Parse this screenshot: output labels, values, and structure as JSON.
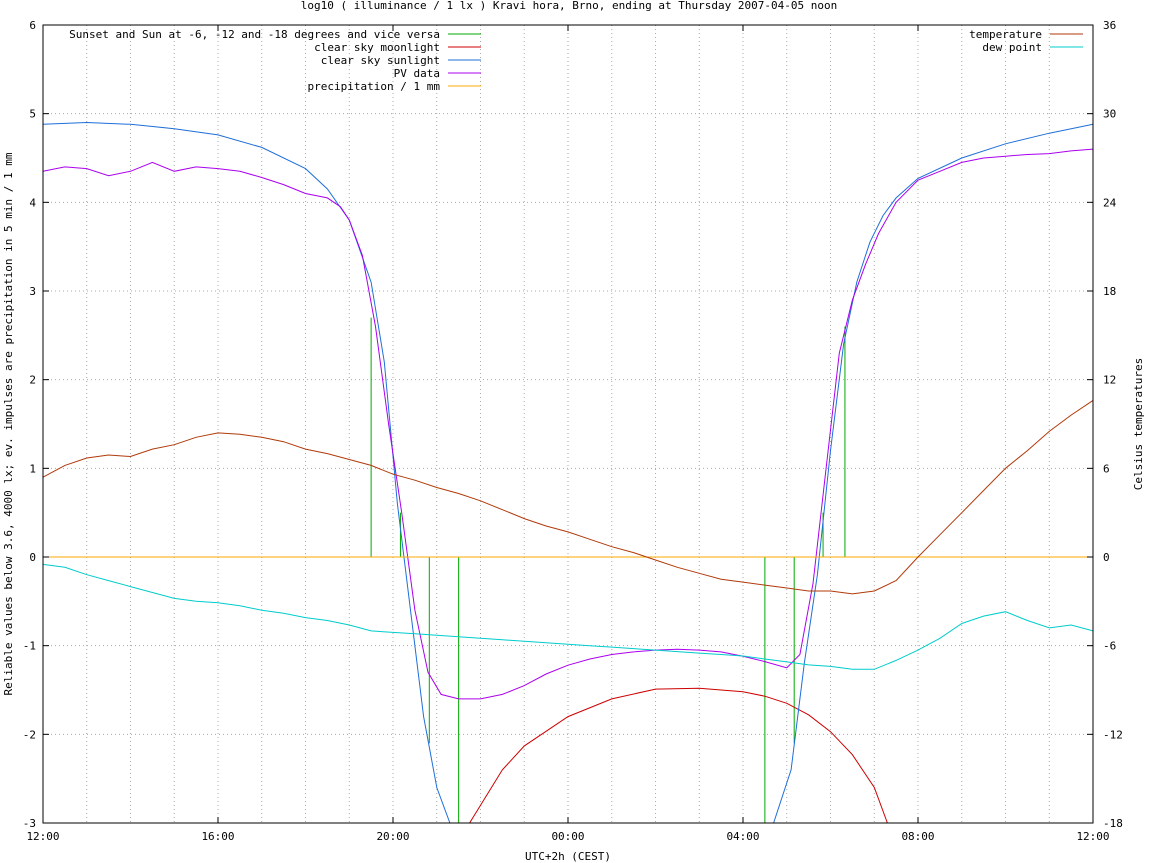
{
  "chart_data": {
    "type": "line",
    "title": "log10 ( illuminance / 1 lx ) Kravi hora, Brno, ending at Thursday 2007-04-05 noon",
    "xlabel": "UTC+2h (CEST)",
    "ylabel": "Reliable values below 3.6, 4000 lx; ev. impulses are precipitation in 5 min / 1 mm",
    "y2label": "Celsius temperatures",
    "x_unit": "hours since 2007-04-04 12:00",
    "xlim": [
      0,
      24
    ],
    "ylim": [
      -3,
      6
    ],
    "y2lim": [
      -18,
      36
    ],
    "x_ticks": [
      {
        "x": 0,
        "label": "12:00"
      },
      {
        "x": 4,
        "label": "16:00"
      },
      {
        "x": 8,
        "label": "20:00"
      },
      {
        "x": 12,
        "label": "00:00"
      },
      {
        "x": 16,
        "label": "04:00"
      },
      {
        "x": 20,
        "label": "08:00"
      },
      {
        "x": 24,
        "label": "12:00"
      }
    ],
    "y_ticks": [
      "-3",
      "-2",
      "-1",
      "0",
      "1",
      "2",
      "3",
      "4",
      "5",
      "6"
    ],
    "y2_ticks": [
      "-18",
      "-12",
      "-6",
      "0",
      "6",
      "12",
      "18",
      "24",
      "30",
      "36"
    ],
    "grid": true,
    "legend_left": [
      {
        "name": "Sunset and Sun at -6, -12 and -18 degrees and vice versa",
        "color": "#00aa00"
      },
      {
        "name": "clear sky moonlight",
        "color": "#cc0000"
      },
      {
        "name": "clear sky sunlight",
        "color": "#1e6fd9"
      },
      {
        "name": "PV data",
        "color": "#aa00ee"
      },
      {
        "name": "precipitation / 1 mm",
        "color": "#ffaa00"
      }
    ],
    "legend_right": [
      {
        "name": "temperature",
        "color": "#b03a0a"
      },
      {
        "name": "dew point",
        "color": "#00cccc"
      }
    ],
    "series": [
      {
        "name": "Sunset and Sun at -6, -12 and -18 degrees and vice versa",
        "type": "impulses",
        "color": "#00aa00",
        "points": [
          [
            7.5,
            2.7
          ],
          [
            8.17,
            0.5
          ],
          [
            8.83,
            -2.1
          ],
          [
            9.5,
            -3.0
          ],
          [
            16.5,
            -3.0
          ],
          [
            17.17,
            -2.1
          ],
          [
            17.83,
            0.5
          ],
          [
            18.33,
            2.6
          ]
        ]
      },
      {
        "name": "clear sky moonlight",
        "color": "#cc0000",
        "points": [
          [
            9.75,
            -3.0
          ],
          [
            10.5,
            -2.4
          ],
          [
            11.0,
            -2.13
          ],
          [
            12.0,
            -1.8
          ],
          [
            13.0,
            -1.6
          ],
          [
            14.0,
            -1.49
          ],
          [
            15.0,
            -1.48
          ],
          [
            16.0,
            -1.52
          ],
          [
            16.5,
            -1.57
          ],
          [
            17.0,
            -1.65
          ],
          [
            17.5,
            -1.78
          ],
          [
            18.0,
            -1.97
          ],
          [
            18.5,
            -2.23
          ],
          [
            19.0,
            -2.6
          ],
          [
            19.3,
            -3.0
          ]
        ]
      },
      {
        "name": "clear sky sunlight",
        "color": "#1e6fd9",
        "points": [
          [
            0,
            4.88
          ],
          [
            1,
            4.9
          ],
          [
            2,
            4.88
          ],
          [
            3,
            4.83
          ],
          [
            4,
            4.76
          ],
          [
            5,
            4.62
          ],
          [
            6,
            4.38
          ],
          [
            6.5,
            4.15
          ],
          [
            7,
            3.8
          ],
          [
            7.5,
            3.1
          ],
          [
            7.8,
            2.2
          ],
          [
            8.1,
            0.6
          ],
          [
            8.4,
            -0.6
          ],
          [
            8.7,
            -1.8
          ],
          [
            9.0,
            -2.6
          ],
          [
            9.3,
            -3.0
          ],
          [
            16.7,
            -3.0
          ],
          [
            17.1,
            -2.4
          ],
          [
            17.4,
            -1.2
          ],
          [
            17.7,
            -0.2
          ],
          [
            18.0,
            1.2
          ],
          [
            18.3,
            2.4
          ],
          [
            18.6,
            3.1
          ],
          [
            18.9,
            3.55
          ],
          [
            19.2,
            3.85
          ],
          [
            19.5,
            4.05
          ],
          [
            20,
            4.27
          ],
          [
            21,
            4.5
          ],
          [
            22,
            4.66
          ],
          [
            23,
            4.78
          ],
          [
            24,
            4.88
          ]
        ]
      },
      {
        "name": "PV data",
        "color": "#aa00ee",
        "points": [
          [
            0,
            4.35
          ],
          [
            0.5,
            4.4
          ],
          [
            1.0,
            4.38
          ],
          [
            1.5,
            4.3
          ],
          [
            2.0,
            4.35
          ],
          [
            2.5,
            4.45
          ],
          [
            3.0,
            4.35
          ],
          [
            3.5,
            4.4
          ],
          [
            4.0,
            4.38
          ],
          [
            4.5,
            4.35
          ],
          [
            5.0,
            4.28
          ],
          [
            5.5,
            4.2
          ],
          [
            6.0,
            4.1
          ],
          [
            6.5,
            4.05
          ],
          [
            6.8,
            3.95
          ],
          [
            7.0,
            3.8
          ],
          [
            7.3,
            3.4
          ],
          [
            7.6,
            2.6
          ],
          [
            7.9,
            1.5
          ],
          [
            8.2,
            0.5
          ],
          [
            8.5,
            -0.6
          ],
          [
            8.8,
            -1.3
          ],
          [
            9.1,
            -1.55
          ],
          [
            9.5,
            -1.6
          ],
          [
            10.0,
            -1.6
          ],
          [
            10.5,
            -1.55
          ],
          [
            11.0,
            -1.45
          ],
          [
            11.5,
            -1.32
          ],
          [
            12.0,
            -1.22
          ],
          [
            12.5,
            -1.15
          ],
          [
            13.0,
            -1.1
          ],
          [
            13.5,
            -1.07
          ],
          [
            14.0,
            -1.05
          ],
          [
            14.5,
            -1.04
          ],
          [
            15.0,
            -1.05
          ],
          [
            15.5,
            -1.07
          ],
          [
            16.0,
            -1.12
          ],
          [
            16.5,
            -1.18
          ],
          [
            17.0,
            -1.25
          ],
          [
            17.3,
            -1.1
          ],
          [
            17.6,
            -0.3
          ],
          [
            17.9,
            1.0
          ],
          [
            18.2,
            2.3
          ],
          [
            18.5,
            2.9
          ],
          [
            18.8,
            3.3
          ],
          [
            19.1,
            3.65
          ],
          [
            19.5,
            4.0
          ],
          [
            20.0,
            4.25
          ],
          [
            20.5,
            4.35
          ],
          [
            21.0,
            4.45
          ],
          [
            21.5,
            4.5
          ],
          [
            22.0,
            4.52
          ],
          [
            22.5,
            4.54
          ],
          [
            23.0,
            4.55
          ],
          [
            23.5,
            4.58
          ],
          [
            24.0,
            4.6
          ]
        ]
      },
      {
        "name": "precipitation / 1 mm",
        "color": "#ffaa00",
        "points": [
          [
            0,
            0
          ],
          [
            24,
            0
          ]
        ]
      },
      {
        "name": "temperature",
        "axis": "y2",
        "color": "#b03a0a",
        "points": [
          [
            0,
            5.4
          ],
          [
            0.5,
            6.2
          ],
          [
            1.0,
            6.7
          ],
          [
            1.5,
            6.9
          ],
          [
            2.0,
            6.8
          ],
          [
            2.5,
            7.3
          ],
          [
            3.0,
            7.6
          ],
          [
            3.5,
            8.1
          ],
          [
            4.0,
            8.4
          ],
          [
            4.5,
            8.3
          ],
          [
            5.0,
            8.1
          ],
          [
            5.5,
            7.8
          ],
          [
            6.0,
            7.3
          ],
          [
            6.5,
            7.0
          ],
          [
            7.0,
            6.6
          ],
          [
            7.5,
            6.2
          ],
          [
            8.0,
            5.6
          ],
          [
            8.5,
            5.2
          ],
          [
            9.0,
            4.7
          ],
          [
            9.5,
            4.3
          ],
          [
            10.0,
            3.8
          ],
          [
            10.5,
            3.2
          ],
          [
            11.0,
            2.6
          ],
          [
            11.5,
            2.1
          ],
          [
            12.0,
            1.7
          ],
          [
            12.5,
            1.2
          ],
          [
            13.0,
            0.7
          ],
          [
            13.5,
            0.3
          ],
          [
            14.0,
            -0.2
          ],
          [
            14.5,
            -0.7
          ],
          [
            15.0,
            -1.1
          ],
          [
            15.5,
            -1.5
          ],
          [
            16.0,
            -1.7
          ],
          [
            16.5,
            -1.9
          ],
          [
            17.0,
            -2.1
          ],
          [
            17.5,
            -2.3
          ],
          [
            18.0,
            -2.3
          ],
          [
            18.5,
            -2.5
          ],
          [
            19.0,
            -2.3
          ],
          [
            19.5,
            -1.6
          ],
          [
            20.0,
            0.0
          ],
          [
            20.5,
            1.5
          ],
          [
            21.0,
            3.0
          ],
          [
            21.5,
            4.5
          ],
          [
            22.0,
            6.0
          ],
          [
            22.5,
            7.2
          ],
          [
            23.0,
            8.5
          ],
          [
            23.5,
            9.6
          ],
          [
            24.0,
            10.6
          ]
        ]
      },
      {
        "name": "dew point",
        "axis": "y2",
        "color": "#00cccc",
        "points": [
          [
            0,
            -0.5
          ],
          [
            0.5,
            -0.7
          ],
          [
            1.0,
            -1.2
          ],
          [
            1.5,
            -1.6
          ],
          [
            2.0,
            -2.0
          ],
          [
            2.5,
            -2.4
          ],
          [
            3.0,
            -2.8
          ],
          [
            3.5,
            -3.0
          ],
          [
            4.0,
            -3.1
          ],
          [
            4.5,
            -3.3
          ],
          [
            5.0,
            -3.6
          ],
          [
            5.5,
            -3.8
          ],
          [
            6.0,
            -4.1
          ],
          [
            6.5,
            -4.3
          ],
          [
            7.0,
            -4.6
          ],
          [
            7.5,
            -5.0
          ],
          [
            8.0,
            -5.1
          ],
          [
            8.5,
            -5.2
          ],
          [
            9.0,
            -5.3
          ],
          [
            9.5,
            -5.4
          ],
          [
            10.0,
            -5.5
          ],
          [
            10.5,
            -5.6
          ],
          [
            11.0,
            -5.7
          ],
          [
            11.5,
            -5.8
          ],
          [
            12.0,
            -5.9
          ],
          [
            12.5,
            -6.0
          ],
          [
            13.0,
            -6.1
          ],
          [
            13.5,
            -6.2
          ],
          [
            14.0,
            -6.3
          ],
          [
            14.5,
            -6.4
          ],
          [
            15.0,
            -6.5
          ],
          [
            15.5,
            -6.6
          ],
          [
            16.0,
            -6.7
          ],
          [
            16.5,
            -6.9
          ],
          [
            17.0,
            -7.1
          ],
          [
            17.5,
            -7.3
          ],
          [
            18.0,
            -7.4
          ],
          [
            18.5,
            -7.6
          ],
          [
            19.0,
            -7.6
          ],
          [
            19.5,
            -7.0
          ],
          [
            20.0,
            -6.3
          ],
          [
            20.5,
            -5.5
          ],
          [
            21.0,
            -4.5
          ],
          [
            21.5,
            -4.0
          ],
          [
            22.0,
            -3.7
          ],
          [
            22.5,
            -4.3
          ],
          [
            23.0,
            -4.8
          ],
          [
            23.5,
            -4.6
          ],
          [
            24.0,
            -5.0
          ]
        ]
      }
    ]
  }
}
